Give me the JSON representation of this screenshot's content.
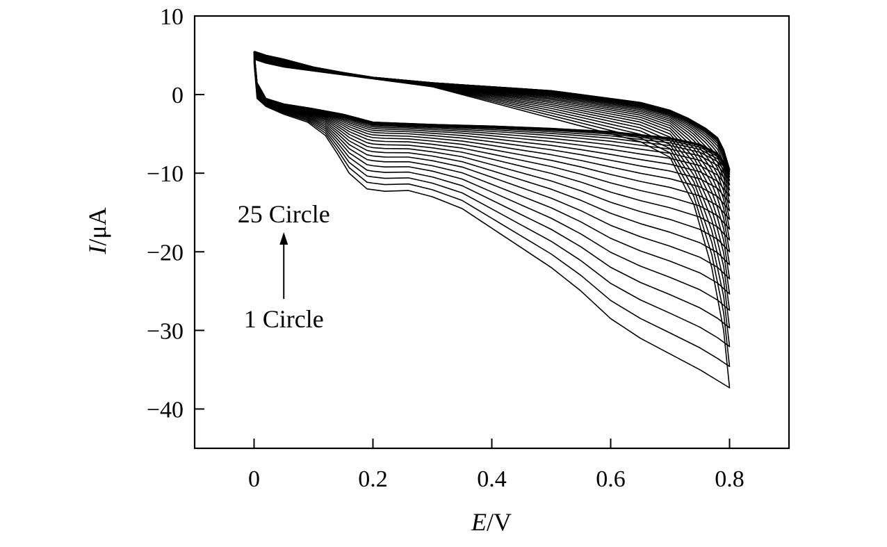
{
  "chart_data": {
    "type": "line",
    "title": "",
    "xlabel": {
      "italic": "E",
      "rest": "/V"
    },
    "ylabel": {
      "italic": "I",
      "rest": "/μA"
    },
    "xlim": [
      -0.1,
      0.9
    ],
    "ylim": [
      -45,
      10
    ],
    "x_ticks": [
      0,
      0.2,
      0.4,
      0.6,
      0.8
    ],
    "x_tick_labels": [
      "0",
      "0.2",
      "0.4",
      "0.6",
      "0.8"
    ],
    "y_ticks": [
      10,
      0,
      -10,
      -20,
      -30,
      -40
    ],
    "y_tick_labels": [
      "10",
      "0",
      "−10",
      "−20",
      "−30",
      "−40"
    ],
    "grid": false,
    "annotations": {
      "start_label": "1 Circle",
      "end_label": "25 Circle",
      "arrow_x": 0.05,
      "arrow_from_y": -26,
      "arrow_to_y": -17.5
    },
    "cycle_count": 25,
    "series": [
      {
        "name": "1 Circle",
        "forward_x": [
          0,
          0.005,
          0.02,
          0.05,
          0.09,
          0.12,
          0.14,
          0.16,
          0.19,
          0.22,
          0.26,
          0.3,
          0.35,
          0.4,
          0.45,
          0.5,
          0.55,
          0.6,
          0.65,
          0.7,
          0.75,
          0.8
        ],
        "forward_y": [
          4.0,
          -0.5,
          -1.5,
          -2.5,
          -3.5,
          -5.2,
          -7.5,
          -10.0,
          -12.0,
          -12.3,
          -12.2,
          -13.0,
          -14.5,
          -17.0,
          -19.5,
          -22.0,
          -25.0,
          -28.5,
          -31.0,
          -33.0,
          -35.0,
          -37.3
        ],
        "reverse_x": [
          0.8,
          0.79,
          0.77,
          0.74,
          0.7,
          0.65,
          0.6,
          0.55,
          0.5,
          0.45,
          0.4,
          0.35,
          0.3,
          0.25,
          0.2,
          0.15,
          0.1,
          0.05,
          0.02,
          0.0
        ],
        "reverse_y": [
          -37.3,
          -30.0,
          -22.0,
          -14.0,
          -8.0,
          -6.0,
          -5.0,
          -4.0,
          -3.0,
          -2.0,
          -1.0,
          0.0,
          1.0,
          1.5,
          2.0,
          2.5,
          3.0,
          3.5,
          4.0,
          4.5
        ]
      },
      {
        "name": "25 Circle",
        "forward_x": [
          0,
          0.005,
          0.02,
          0.05,
          0.1,
          0.15,
          0.2,
          0.3,
          0.4,
          0.5,
          0.6,
          0.7,
          0.75,
          0.78,
          0.8
        ],
        "forward_y": [
          5.5,
          1.5,
          -0.5,
          -1.2,
          -1.8,
          -2.5,
          -3.5,
          -3.8,
          -4.0,
          -4.3,
          -4.7,
          -5.5,
          -6.3,
          -7.5,
          -9.5
        ],
        "reverse_x": [
          0.8,
          0.79,
          0.78,
          0.76,
          0.73,
          0.7,
          0.65,
          0.6,
          0.5,
          0.4,
          0.3,
          0.2,
          0.15,
          0.1,
          0.05,
          0.02,
          0.0
        ],
        "reverse_y": [
          -9.5,
          -7.0,
          -5.5,
          -4.3,
          -3.0,
          -2.0,
          -1.0,
          -0.5,
          0.5,
          1.0,
          1.5,
          2.2,
          2.8,
          3.5,
          4.5,
          5.0,
          5.5
        ]
      }
    ]
  }
}
